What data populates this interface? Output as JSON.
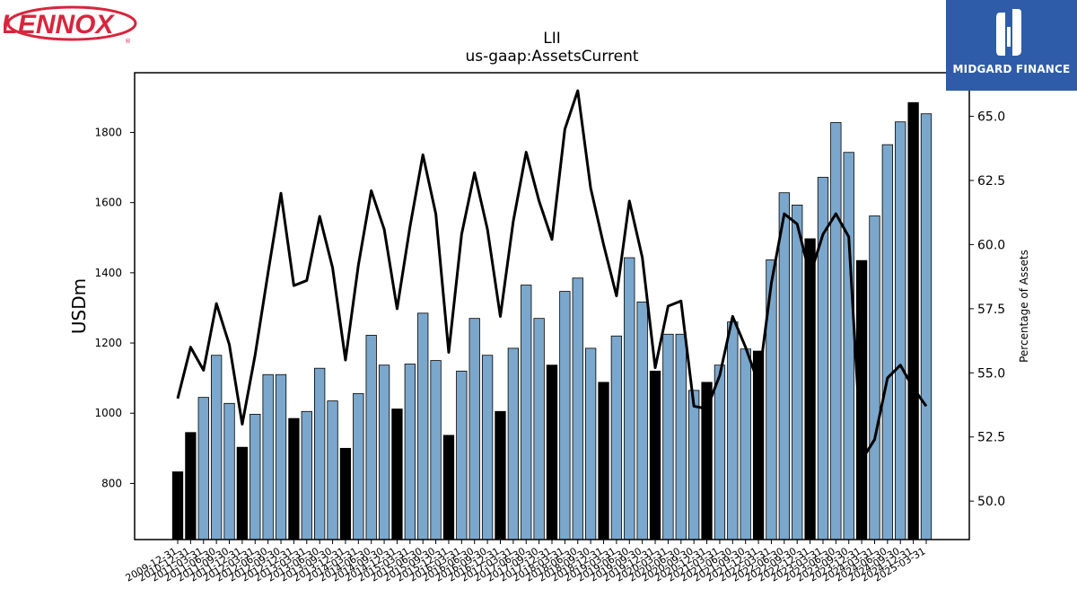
{
  "chart_data": {
    "type": "bar+line",
    "title": "LII",
    "subtitle": "us-gaap:AssetsCurrent",
    "ylabel_left": "USDm",
    "ylabel_right": "Percentage of Assets",
    "ylim_left": [
      640,
      1970
    ],
    "ylim_right": [
      48.5,
      66.7
    ],
    "left_ticks": [
      800,
      1000,
      1200,
      1400,
      1600,
      1800
    ],
    "right_ticks": [
      50.0,
      52.5,
      55.0,
      57.5,
      60.0,
      62.5,
      65.0
    ],
    "colors": {
      "bar_q": "#7ba7cc",
      "bar_fy": "#000000",
      "line": "#000000"
    },
    "series": [
      {
        "kind": "bar",
        "values": [
          833,
          945,
          1045,
          1165,
          1028,
          903,
          997,
          1110,
          1110,
          985,
          1005,
          1128,
          1035,
          900,
          1056,
          1222,
          1137,
          1012,
          1140,
          1285,
          1150,
          937,
          1120,
          1270,
          1165,
          1005,
          1185,
          1365,
          1270,
          1137,
          1347,
          1385,
          1185,
          1088,
          1220,
          1443,
          1317,
          1120,
          1225,
          1225,
          1065,
          1088,
          1137,
          1260,
          1183,
          1177,
          1437,
          1628,
          1593,
          1497,
          1672,
          1828,
          1743,
          1435,
          1562,
          1765,
          1830,
          1885,
          1853
        ]
      },
      {
        "kind": "line",
        "values": [
          54.0,
          56.0,
          55.1,
          57.7,
          56.1,
          53.0,
          55.7,
          58.9,
          62.0,
          58.4,
          58.6,
          61.1,
          59.1,
          55.5,
          59.2,
          62.1,
          60.6,
          57.5,
          60.7,
          63.5,
          61.2,
          55.8,
          60.4,
          62.8,
          60.6,
          57.2,
          60.9,
          63.6,
          61.7,
          60.2,
          64.5,
          66.0,
          62.2,
          60.0,
          58.0,
          61.7,
          59.5,
          55.2,
          57.6,
          57.8,
          53.7,
          53.6,
          54.9,
          57.2,
          56.0,
          54.6,
          58.5,
          61.2,
          60.8,
          58.8,
          60.4,
          61.2,
          60.3,
          51.6,
          52.4,
          54.8,
          55.3,
          54.4,
          53.7
        ]
      }
    ],
    "bar_kinds": [
      "fy",
      "fy",
      "q",
      "q",
      "q",
      "fy",
      "q",
      "q",
      "q",
      "fy",
      "q",
      "q",
      "q",
      "fy",
      "q",
      "q",
      "q",
      "fy",
      "q",
      "q",
      "q",
      "fy",
      "q",
      "q",
      "q",
      "fy",
      "q",
      "q",
      "q",
      "fy",
      "q",
      "q",
      "q",
      "fy",
      "q",
      "q",
      "q",
      "fy",
      "q",
      "q",
      "q",
      "fy",
      "q",
      "q",
      "q",
      "fy",
      "q",
      "q",
      "q",
      "fy",
      "q",
      "q",
      "q",
      "fy",
      "q",
      "q",
      "q",
      "fy",
      "q"
    ],
    "categories": [
      "2009-12-31",
      "2010-12-31",
      "2011-03-31",
      "2011-06-30",
      "2011-09-30",
      "2011-12-31",
      "2012-03-31",
      "2012-06-30",
      "2012-09-30",
      "2012-12-31",
      "2013-03-31",
      "2013-06-30",
      "2013-09-30",
      "2013-12-31",
      "2014-03-31",
      "2014-06-30",
      "2014-09-30",
      "2014-12-31",
      "2015-03-31",
      "2015-06-30",
      "2015-09-30",
      "2015-12-31",
      "2016-03-31",
      "2016-06-30",
      "2016-09-30",
      "2016-12-31",
      "2017-03-31",
      "2017-06-30",
      "2017-09-30",
      "2017-12-31",
      "2018-03-31",
      "2018-06-30",
      "2018-09-30",
      "2018-12-31",
      "2019-03-31",
      "2019-06-30",
      "2019-09-30",
      "2019-12-31",
      "2020-03-31",
      "2020-06-30",
      "2020-09-30",
      "2020-12-31",
      "2021-03-31",
      "2021-06-30",
      "2021-09-30",
      "2021-12-31",
      "2022-03-31",
      "2022-06-30",
      "2022-09-30",
      "2022-12-31",
      "2023-03-31",
      "2023-06-30",
      "2023-09-30",
      "2023-12-31",
      "2024-03-31",
      "2024-06-30",
      "2024-09-30",
      "2024-12-31",
      "2025-03-31"
    ]
  },
  "logos": {
    "left": {
      "text": "LENNOX",
      "mark": "®",
      "color": "#d7263d"
    },
    "right": {
      "text": "MIDGARD FINANCE",
      "color": "#2f5ca8"
    }
  }
}
